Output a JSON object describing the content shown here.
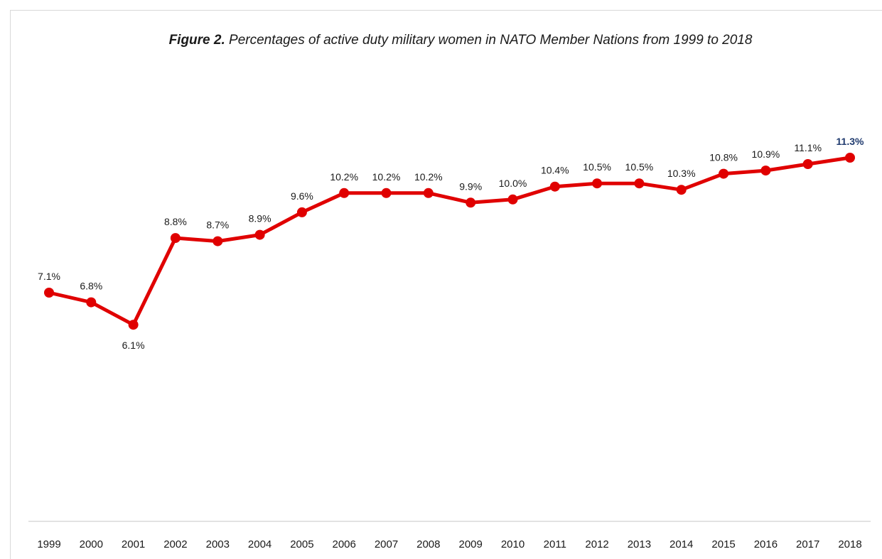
{
  "chart_data": {
    "type": "line",
    "title_bold": "Figure 2.",
    "title_rest": " Percentages of active duty military women in NATO Member Nations from 1999 to 2018",
    "categories": [
      "1999",
      "2000",
      "2001",
      "2002",
      "2003",
      "2004",
      "2005",
      "2006",
      "2007",
      "2008",
      "2009",
      "2010",
      "2011",
      "2012",
      "2013",
      "2014",
      "2015",
      "2016",
      "2017",
      "2018"
    ],
    "series": [
      {
        "values": [
          7.1,
          6.8,
          6.1,
          8.8,
          8.7,
          8.9,
          9.6,
          10.2,
          10.2,
          10.2,
          9.9,
          10.0,
          10.4,
          10.5,
          10.5,
          10.3,
          10.8,
          10.9,
          11.1,
          11.3
        ],
        "labels": [
          "7.1%",
          "6.8%",
          "6.1%",
          "8.8%",
          "8.7%",
          "8.9%",
          "9.6%",
          "10.2%",
          "10.2%",
          "10.2%",
          "9.9%",
          "10.0%",
          "10.4%",
          "10.5%",
          "10.5%",
          "10.3%",
          "10.8%",
          "10.9%",
          "11.1%",
          "11.3%"
        ],
        "color": "#e00000",
        "highlight_label_color": "#1f3a6e"
      }
    ],
    "ylim": [
      0,
      12.5
    ],
    "grid": false,
    "legend": "none",
    "axis_line_color": "#d9d9d9"
  }
}
